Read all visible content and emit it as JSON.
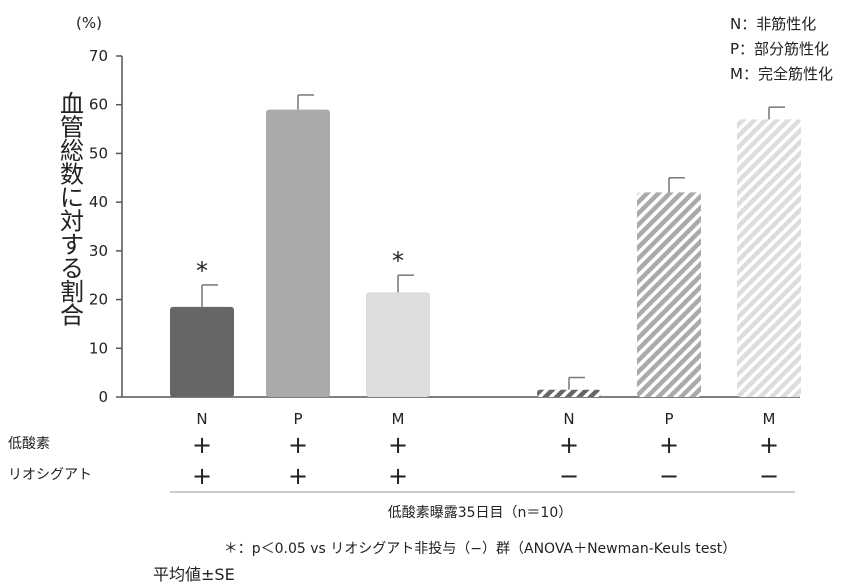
{
  "chart_data": {
    "type": "bar",
    "yunit": "(%)",
    "ylabel": "血管総数に対する割合",
    "yticks": [
      "0",
      "10",
      "20",
      "30",
      "40",
      "50",
      "60",
      "70"
    ],
    "ylim": [
      0,
      70
    ],
    "legend": [
      "N：非筋性化",
      "P：部分筋性化",
      "M：完全筋性化"
    ],
    "categories": [
      "N",
      "P",
      "M",
      "N",
      "P",
      "M"
    ],
    "values": [
      18.5,
      59,
      21.5,
      1.5,
      42,
      57
    ],
    "errors": [
      4.5,
      3,
      3.5,
      2.5,
      3,
      2.5
    ],
    "significance": [
      "*",
      "",
      "*",
      "",
      "",
      ""
    ],
    "colors": [
      "#666666",
      "#aaaaaa",
      "#dddddd",
      "#666666",
      "#aaaaaa",
      "#dddddd"
    ],
    "patterns": [
      "solid",
      "solid",
      "solid",
      "hatch",
      "hatch",
      "hatch"
    ],
    "rows": [
      {
        "label": "低酸素",
        "signs": [
          "+",
          "+",
          "+",
          "+",
          "+",
          "+"
        ]
      },
      {
        "label": "リオシグアト",
        "signs": [
          "+",
          "+",
          "+",
          "−",
          "−",
          "−"
        ]
      }
    ],
    "condition": "低酸素曝露35日目（n＝10）",
    "footnote": "＊：p＜0.05 vs リオシグアト非投与（−）群（ANOVA＋Newman-Keuls test）",
    "note": "平均値±SE"
  }
}
